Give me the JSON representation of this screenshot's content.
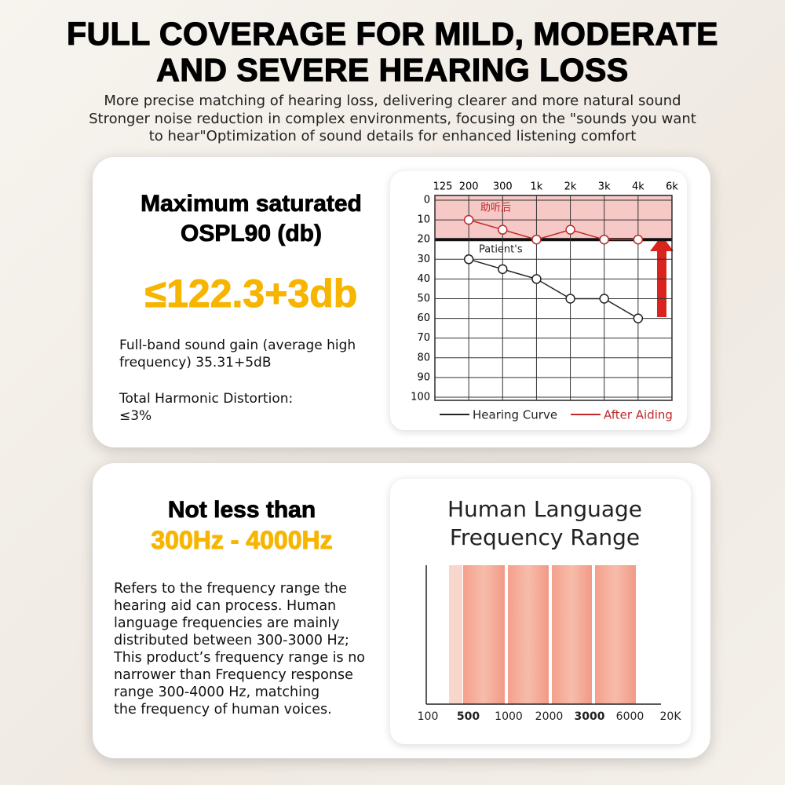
{
  "header": {
    "title_lines": [
      "FULL COVERAGE FOR MILD, MODERATE",
      "AND SEVERE HEARING LOSS"
    ],
    "subtitle_lines": [
      "More precise matching of hearing loss, delivering clearer and more natural sound",
      "Stronger noise reduction in complex environments, focusing on the \"sounds you want",
      "to hear\"Optimization of sound details for enhanced listening comfort"
    ]
  },
  "cards": [
    {
      "heading_lines": [
        "Maximum saturated",
        "OSPL90 (db)"
      ],
      "highlight": "≤122.3+3db",
      "paragraphs": [
        [
          "Full-band sound gain (average high",
          "frequency) 35.31+5dB"
        ],
        [
          "Total Harmonic Distortion:",
          "≤3%"
        ]
      ]
    },
    {
      "heading_lines": [
        "Not less than"
      ],
      "highlight": "300Hz - 4000Hz",
      "paragraphs": [
        [
          "Refers to the frequency range the",
          "hearing aid can process. Human",
          "language frequencies are mainly",
          "distributed between 300-3000 Hz;",
          "This product’s frequency range is no",
          "narrower than Frequency response",
          "range 300-4000 Hz, matching",
          "the frequency of human voices."
        ]
      ]
    }
  ],
  "chart_data": [
    {
      "type": "line",
      "categories": [
        "125",
        "200",
        "300",
        "1k",
        "2k",
        "3k",
        "4k",
        "6k"
      ],
      "ylim": [
        0,
        100
      ],
      "yticks": [
        0,
        10,
        20,
        30,
        40,
        50,
        60,
        70,
        80,
        90,
        100
      ],
      "y_inverted": true,
      "grid": true,
      "annotations": [
        "助听后",
        "Patient's"
      ],
      "series": [
        {
          "name": "Hearing Curve",
          "color": "#222222",
          "values": [
            null,
            30,
            35,
            40,
            50,
            50,
            60,
            null
          ]
        },
        {
          "name": "After Aiding",
          "color": "#c0282a",
          "values": [
            null,
            10,
            15,
            20,
            15,
            20,
            20,
            null
          ]
        }
      ]
    },
    {
      "type": "range",
      "title_lines": [
        "Human Language",
        "Frequency Range"
      ],
      "categories": [
        "100",
        "500",
        "1000",
        "2000",
        "3000",
        "6000",
        "20K"
      ]
    }
  ]
}
